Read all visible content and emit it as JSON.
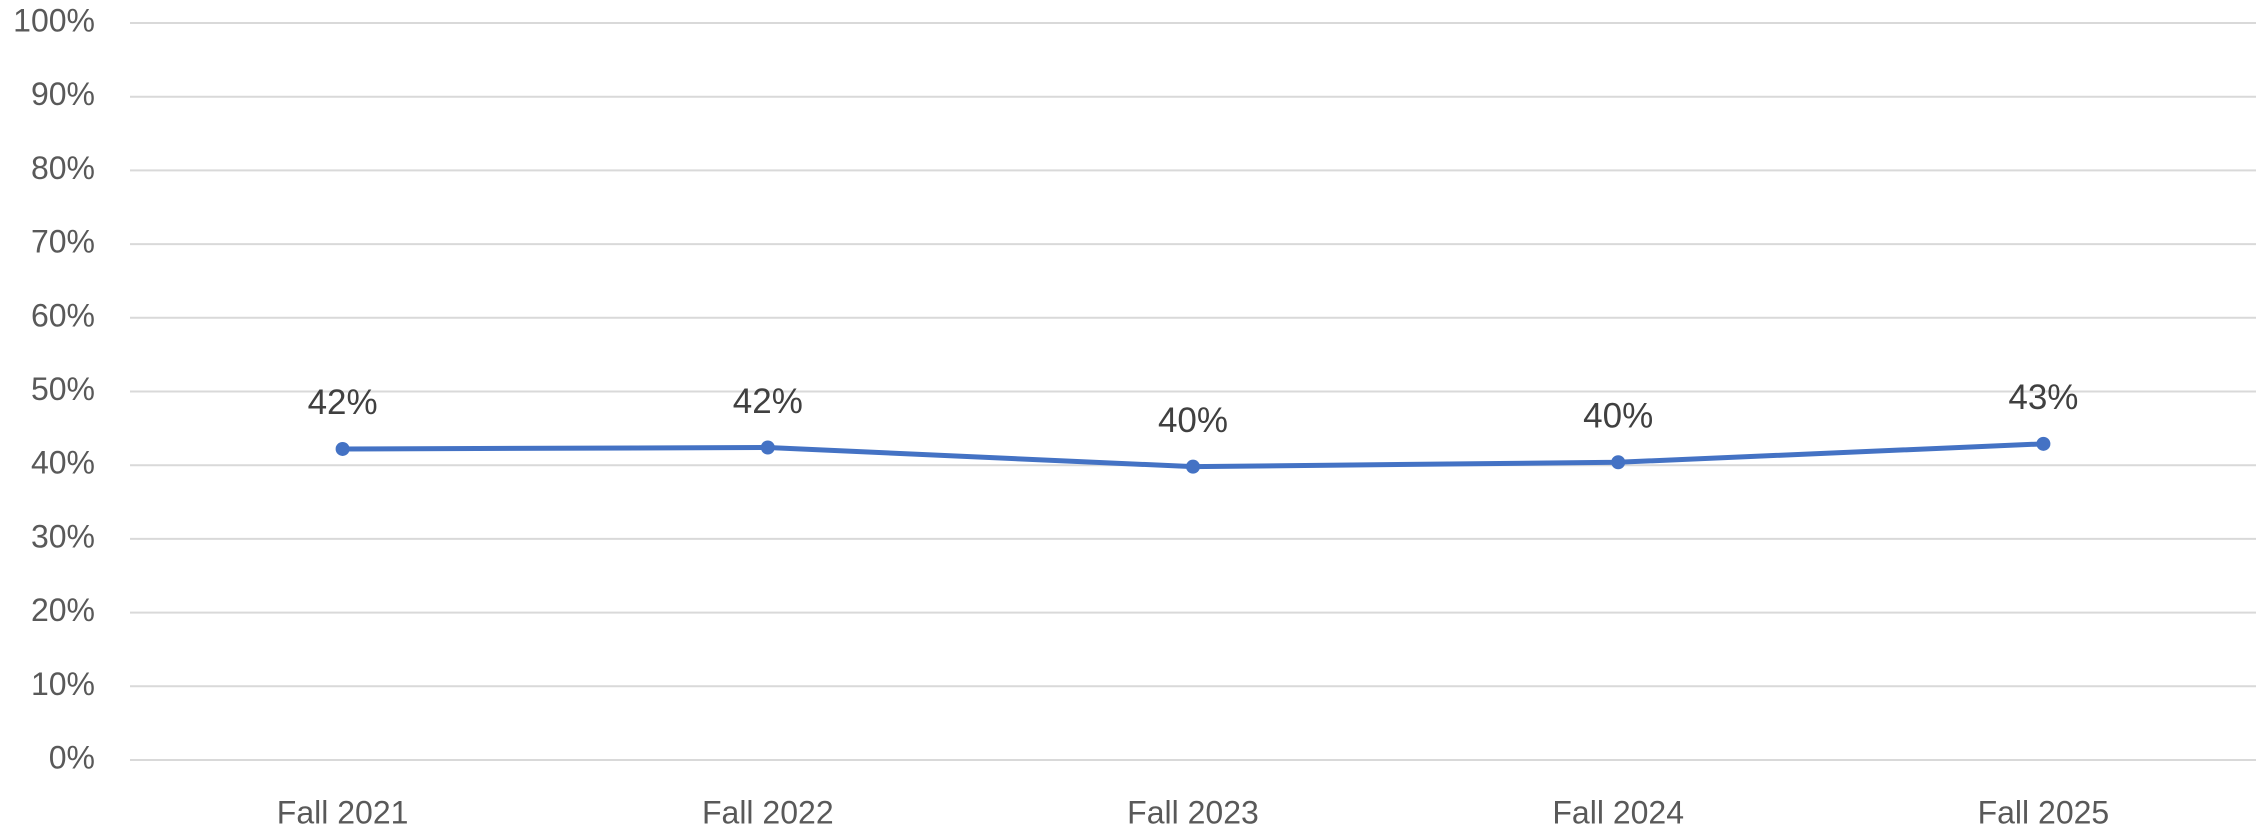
{
  "chart_data": {
    "type": "line",
    "categories": [
      "Fall 2021",
      "Fall 2022",
      "Fall 2023",
      "Fall 2024",
      "Fall 2025"
    ],
    "series": [
      {
        "color": "#4472c4",
        "values": [
          42.2,
          42.4,
          39.8,
          40.4,
          42.9
        ],
        "value_labels": [
          "42%",
          "42%",
          "40%",
          "40%",
          "43%"
        ]
      }
    ],
    "ylim": [
      0,
      100
    ],
    "yticks": [
      {
        "value": 0,
        "label": "0%"
      },
      {
        "value": 10,
        "label": "10%"
      },
      {
        "value": 20,
        "label": "20%"
      },
      {
        "value": 30,
        "label": "30%"
      },
      {
        "value": 40,
        "label": "40%"
      },
      {
        "value": 50,
        "label": "50%"
      },
      {
        "value": 60,
        "label": "60%"
      },
      {
        "value": 70,
        "label": "70%"
      },
      {
        "value": 80,
        "label": "80%"
      },
      {
        "value": 90,
        "label": "90%"
      },
      {
        "value": 100,
        "label": "100%"
      }
    ],
    "grid": true
  }
}
